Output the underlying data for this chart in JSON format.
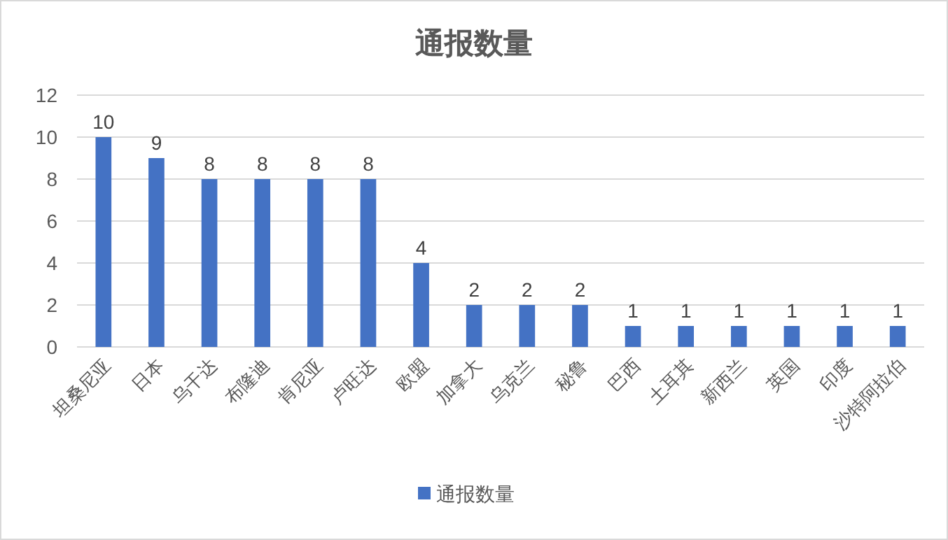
{
  "chart_data": {
    "type": "bar",
    "title": "通报数量",
    "categories": [
      "坦桑尼亚",
      "日本",
      "乌干达",
      "布隆迪",
      "肯尼亚",
      "卢旺达",
      "欧盟",
      "加拿大",
      "乌克兰",
      "秘鲁",
      "巴西",
      "土耳其",
      "新西兰",
      "英国",
      "印度",
      "沙特阿拉伯"
    ],
    "series": [
      {
        "name": "通报数量",
        "color": "#4472c4",
        "values": [
          10,
          9,
          8,
          8,
          8,
          8,
          4,
          2,
          2,
          2,
          1,
          1,
          1,
          1,
          1,
          1
        ]
      }
    ],
    "ylim": [
      0,
      12
    ],
    "yticks": [
      0,
      2,
      4,
      6,
      8,
      10,
      12
    ],
    "grid": "y",
    "data_labels": true,
    "legend": "bottom"
  }
}
